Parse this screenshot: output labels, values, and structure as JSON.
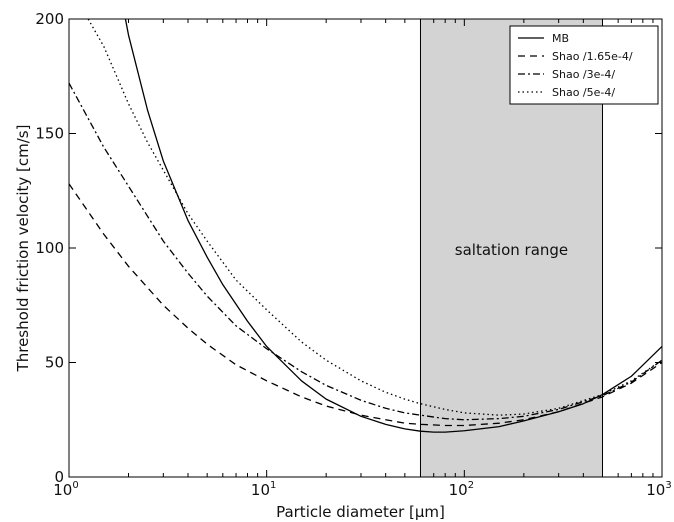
{
  "chart_data": {
    "type": "line",
    "xscale": "log",
    "xlim": [
      1,
      1000
    ],
    "ylim": [
      0,
      200
    ],
    "xlabel": "Particle diameter [µm]",
    "ylabel": "Threshold friction velocity [cm/s]",
    "xticks": [
      {
        "base": "10",
        "exp": "0",
        "value": 1
      },
      {
        "base": "10",
        "exp": "1",
        "value": 10
      },
      {
        "base": "10",
        "exp": "2",
        "value": 100
      },
      {
        "base": "10",
        "exp": "3",
        "value": 1000
      }
    ],
    "yticks": [
      {
        "label": "0",
        "value": 0
      },
      {
        "label": "50",
        "value": 50
      },
      {
        "label": "100",
        "value": 100
      },
      {
        "label": "150",
        "value": 150
      },
      {
        "label": "200",
        "value": 200
      }
    ],
    "shaded_region": {
      "x": [
        60,
        500
      ],
      "label": "saltation range",
      "color": "#d3d3d3"
    },
    "legend": {
      "position": "top-right"
    },
    "series": [
      {
        "name": "MB",
        "style": "solid",
        "x": [
          1.93,
          2,
          2.5,
          3,
          4,
          5,
          6,
          8,
          10,
          15,
          20,
          30,
          40,
          50,
          60,
          70,
          80,
          100,
          150,
          200,
          300,
          400,
          500,
          700,
          1000
        ],
        "y": [
          200,
          193,
          160,
          138,
          112,
          96,
          84,
          68,
          57,
          42,
          34,
          26.5,
          23,
          21,
          20,
          19.6,
          19.6,
          20.2,
          22,
          24.5,
          28.5,
          32,
          36,
          44,
          57
        ]
      },
      {
        "name": "Shao /1.65e-4/",
        "style": "dashed",
        "x": [
          1,
          1.5,
          2,
          3,
          4,
          5,
          7,
          10,
          15,
          20,
          30,
          40,
          50,
          60,
          80,
          100,
          150,
          200,
          300,
          500,
          700,
          1000
        ],
        "y": [
          128,
          106,
          92,
          75,
          65,
          58,
          49,
          42,
          35,
          31,
          27,
          25,
          23.5,
          23,
          22.5,
          22.5,
          23.5,
          25,
          28.5,
          35,
          41,
          50
        ]
      },
      {
        "name": "Shao /3e-4/",
        "style": "dashdot",
        "x": [
          1,
          1.5,
          2,
          3,
          4,
          5,
          7,
          10,
          15,
          20,
          30,
          40,
          50,
          60,
          80,
          100,
          150,
          200,
          300,
          500,
          700,
          1000
        ],
        "y": [
          172,
          144,
          127,
          103,
          89,
          79,
          66,
          56,
          46,
          40,
          33.5,
          30,
          28,
          27,
          25.5,
          25,
          25.5,
          26.5,
          29.5,
          35.5,
          41.5,
          51
        ]
      },
      {
        "name": "Shao /5e-4/",
        "style": "dotted",
        "x": [
          1.25,
          1.5,
          2,
          2.5,
          3,
          4,
          5,
          7,
          10,
          15,
          20,
          30,
          40,
          50,
          60,
          80,
          100,
          150,
          200,
          300,
          500,
          700,
          1000
        ],
        "y": [
          200,
          188,
          163,
          146,
          134,
          115,
          103,
          86,
          73,
          59,
          51,
          42,
          37,
          34,
          32,
          29.5,
          28,
          27,
          27.5,
          30,
          36,
          42,
          51
        ]
      }
    ]
  }
}
